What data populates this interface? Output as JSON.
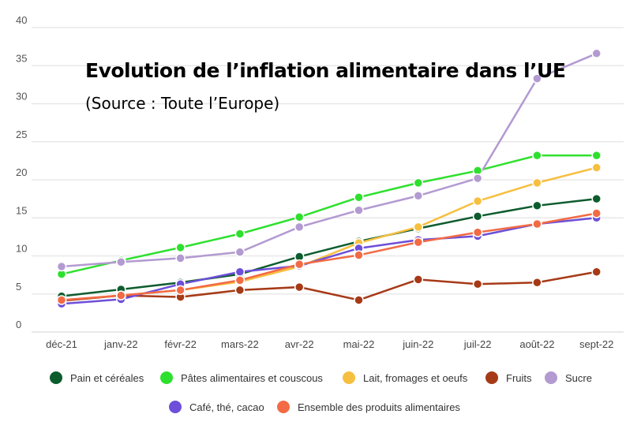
{
  "chart_data": {
    "type": "line",
    "title": "Evolution de l’inflation alimentaire dans l’UE",
    "subtitle": "(Source : Toute l’Europe)",
    "xlabel": "",
    "ylabel": "",
    "ylim": [
      0,
      40
    ],
    "yticks": [
      0,
      5,
      10,
      15,
      20,
      25,
      30,
      35,
      40
    ],
    "grid": true,
    "legend": "bottom",
    "categories": [
      "déc-21",
      "janv-22",
      "févr-22",
      "mars-22",
      "avr-22",
      "mai-22",
      "juin-22",
      "juil-22",
      "août-22",
      "sept-22"
    ],
    "series": [
      {
        "name": "Pain et céréales",
        "color": "#0d5c2e",
        "values": [
          4.7,
          5.6,
          6.5,
          7.6,
          9.9,
          11.9,
          13.6,
          15.2,
          16.6,
          17.5
        ]
      },
      {
        "name": "Pâtes alimentaires et couscous",
        "color": "#2ee02e",
        "values": [
          7.6,
          9.4,
          11.1,
          12.9,
          15.1,
          17.7,
          19.6,
          21.2,
          23.2,
          23.2
        ]
      },
      {
        "name": "Lait, fromages et oeufs",
        "color": "#f7bf3f",
        "values": [
          4.1,
          4.8,
          5.5,
          6.6,
          8.6,
          11.7,
          13.8,
          17.2,
          19.6,
          21.6
        ]
      },
      {
        "name": "Fruits",
        "color": "#a63a17",
        "values": [
          4.1,
          4.8,
          4.6,
          5.5,
          5.9,
          4.2,
          6.9,
          6.3,
          6.5,
          7.9
        ]
      },
      {
        "name": "Sucre",
        "color": "#b39ad1",
        "values": [
          8.6,
          9.2,
          9.7,
          10.5,
          13.8,
          16.0,
          17.9,
          20.2,
          33.3,
          36.6
        ]
      },
      {
        "name": "Café, thé, cacao",
        "color": "#6d4fd9",
        "values": [
          3.7,
          4.3,
          6.3,
          7.9,
          8.7,
          11.0,
          12.1,
          12.6,
          14.2,
          15.0
        ]
      },
      {
        "name": "Ensemble des produits alimentaires",
        "color": "#f26b45",
        "values": [
          4.2,
          4.8,
          5.5,
          6.8,
          8.9,
          10.1,
          11.8,
          13.1,
          14.2,
          15.6
        ]
      }
    ]
  }
}
